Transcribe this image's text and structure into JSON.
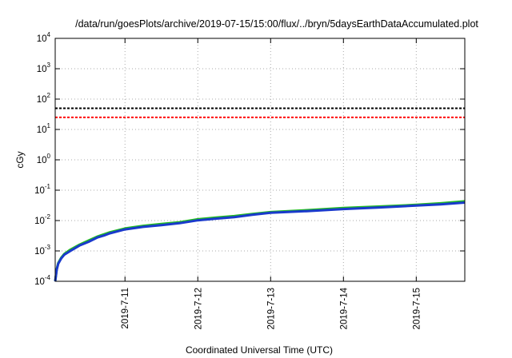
{
  "chart_data": {
    "type": "line",
    "title": "/data/run/goesPlots/archive/2019-07-15/15:00/flux/../bryn/5daysEarthDataAccumulated.plot",
    "xlabel": "Coordinated Universal Time (UTC)",
    "ylabel": "cGy",
    "yscale": "log",
    "ylim": [
      0.0001,
      10000
    ],
    "xlim": [
      "2019-07-10T01:00",
      "2019-07-15T16:00"
    ],
    "grid": true,
    "x_ticks": [
      "2019-7-11",
      "2019-7-12",
      "2019-7-13",
      "2019-7-14",
      "2019-7-15"
    ],
    "y_ticks": [
      {
        "base": "10",
        "exp": "-4",
        "value": 0.0001
      },
      {
        "base": "10",
        "exp": "-3",
        "value": 0.001
      },
      {
        "base": "10",
        "exp": "-2",
        "value": 0.01
      },
      {
        "base": "10",
        "exp": "-1",
        "value": 0.1
      },
      {
        "base": "10",
        "exp": "0",
        "value": 1
      },
      {
        "base": "10",
        "exp": "1",
        "value": 10
      },
      {
        "base": "10",
        "exp": "2",
        "value": 100
      },
      {
        "base": "10",
        "exp": "3",
        "value": 1000
      },
      {
        "base": "10",
        "exp": "4",
        "value": 10000
      }
    ],
    "reference_lines": [
      {
        "value": 50,
        "color": "#000000",
        "style": "dashed"
      },
      {
        "value": 25,
        "color": "#ff0000",
        "style": "dashed"
      }
    ],
    "series": [
      {
        "color": "#22bb22",
        "x": [
          "2019-07-10T01:00",
          "2019-07-10T01:30",
          "2019-07-10T02:00",
          "2019-07-10T03:00",
          "2019-07-10T04:00",
          "2019-07-10T06:00",
          "2019-07-10T09:00",
          "2019-07-10T12:00",
          "2019-07-10T15:00",
          "2019-07-10T17:00",
          "2019-07-10T19:00",
          "2019-07-11T00:00",
          "2019-07-11T06:00",
          "2019-07-11T12:00",
          "2019-07-11T18:00",
          "2019-07-12T00:00",
          "2019-07-12T06:00",
          "2019-07-12T12:00",
          "2019-07-12T18:00",
          "2019-07-13T00:00",
          "2019-07-13T12:00",
          "2019-07-14T00:00",
          "2019-07-14T12:00",
          "2019-07-15T00:00",
          "2019-07-15T08:00",
          "2019-07-15T16:00"
        ],
        "values": [
          0.0001,
          0.00025,
          0.0004,
          0.0006,
          0.0008,
          0.0011,
          0.0016,
          0.0022,
          0.003,
          0.0035,
          0.0041,
          0.0055,
          0.0067,
          0.0077,
          0.0088,
          0.011,
          0.0125,
          0.014,
          0.0165,
          0.019,
          0.022,
          0.026,
          0.029,
          0.033,
          0.037,
          0.043
        ]
      },
      {
        "color": "#1a3acc",
        "x": [
          "2019-07-10T01:00",
          "2019-07-10T01:30",
          "2019-07-10T02:00",
          "2019-07-10T03:00",
          "2019-07-10T04:00",
          "2019-07-10T06:00",
          "2019-07-10T09:00",
          "2019-07-10T12:00",
          "2019-07-10T15:00",
          "2019-07-10T17:00",
          "2019-07-10T19:00",
          "2019-07-11T00:00",
          "2019-07-11T06:00",
          "2019-07-11T12:00",
          "2019-07-11T18:00",
          "2019-07-12T00:00",
          "2019-07-12T06:00",
          "2019-07-12T12:00",
          "2019-07-12T18:00",
          "2019-07-13T00:00",
          "2019-07-13T12:00",
          "2019-07-14T00:00",
          "2019-07-14T12:00",
          "2019-07-15T00:00",
          "2019-07-15T08:00",
          "2019-07-15T16:00"
        ],
        "values": [
          0.0001,
          0.00024,
          0.00038,
          0.00057,
          0.00075,
          0.001,
          0.0015,
          0.002,
          0.0028,
          0.0032,
          0.0038,
          0.0051,
          0.0062,
          0.0071,
          0.0082,
          0.0102,
          0.0116,
          0.013,
          0.0155,
          0.018,
          0.0205,
          0.024,
          0.027,
          0.031,
          0.034,
          0.039
        ]
      }
    ]
  }
}
